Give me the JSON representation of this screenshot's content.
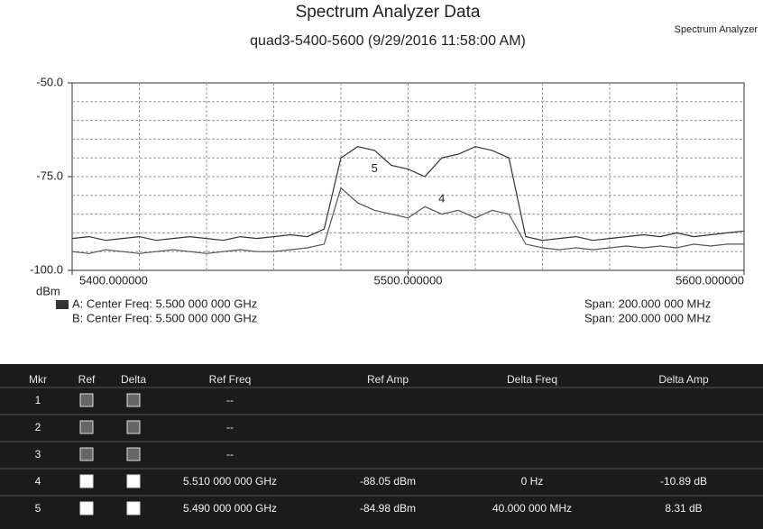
{
  "chart_data": {
    "type": "line",
    "title": "Spectrum Analyzer Data",
    "subtitle": "quad3-5400-5600 (9/29/2016 11:58:00 AM)",
    "badge": "Spectrum Analyzer",
    "y_unit": "dBm",
    "xlim": [
      5400,
      5600
    ],
    "xticks": [
      {
        "value": 5400,
        "label": "5400.000000"
      },
      {
        "value": 5500,
        "label": "5500.000000"
      },
      {
        "value": 5600,
        "label": "5600.000000"
      }
    ],
    "ylim": [
      -100,
      -50
    ],
    "yticks": [
      {
        "value": -50,
        "label": "-50.0"
      },
      {
        "value": -75,
        "label": "-75.0"
      },
      {
        "value": -100,
        "label": "-100.0"
      }
    ],
    "grid": true,
    "grid_divisions": 10,
    "x": [
      5400,
      5405,
      5410,
      5415,
      5420,
      5425,
      5430,
      5435,
      5440,
      5445,
      5450,
      5455,
      5460,
      5465,
      5470,
      5475,
      5480,
      5485,
      5490,
      5495,
      5500,
      5505,
      5510,
      5515,
      5520,
      5525,
      5530,
      5535,
      5540,
      5545,
      5550,
      5555,
      5560,
      5565,
      5570,
      5575,
      5580,
      5585,
      5590,
      5595,
      5600
    ],
    "series": [
      {
        "name": "A: Center Freq: 5.500 000 000 GHz",
        "color": "#333333",
        "values": [
          -91.5,
          -91,
          -92,
          -91.5,
          -91,
          -92,
          -91.5,
          -91,
          -91.5,
          -92,
          -91,
          -91.5,
          -91,
          -90.5,
          -91,
          -89,
          -70,
          -67,
          -68,
          -72,
          -73,
          -75,
          -70,
          -69,
          -67,
          -68,
          -70,
          -91,
          -92,
          -91.5,
          -91,
          -92,
          -91.5,
          -91,
          -90.5,
          -91,
          -90,
          -91,
          -90.5,
          -90,
          -89.5
        ]
      },
      {
        "name": "B: Center Freq: 5.500 000 000 GHz",
        "color": "#555555",
        "values": [
          -95,
          -95.5,
          -94.5,
          -95,
          -95.5,
          -95,
          -94.5,
          -95,
          -95.5,
          -95,
          -94.5,
          -95,
          -95,
          -94.5,
          -94,
          -93,
          -78,
          -82,
          -84,
          -85,
          -86,
          -83,
          -85,
          -84,
          -86,
          -84,
          -85,
          -93,
          -94,
          -94.5,
          -94,
          -94.5,
          -94,
          -93.5,
          -94,
          -93.5,
          -94,
          -93,
          -93.5,
          -93,
          -93
        ]
      }
    ],
    "spans": [
      "Span: 200.000 000 MHz",
      "Span: 200.000 000 MHz"
    ],
    "annotations": [
      {
        "label": "5",
        "x": 5490,
        "y": -73
      },
      {
        "label": "4",
        "x": 5510,
        "y": -81
      }
    ]
  },
  "table": {
    "headers": [
      "Mkr",
      "Ref",
      "Delta",
      "Ref Freq",
      "Ref Amp",
      "Delta Freq",
      "Delta Amp"
    ],
    "rows": [
      {
        "mkr": "1",
        "ref_freq": "--"
      },
      {
        "mkr": "2",
        "ref_freq": "--"
      },
      {
        "mkr": "3",
        "ref_freq": "--"
      },
      {
        "mkr": "4",
        "ref_freq": "5.510 000 000 GHz",
        "ref_amp": "-88.05 dBm",
        "delta_freq": "0 Hz",
        "delta_amp": "-10.89 dB"
      },
      {
        "mkr": "5",
        "ref_freq": "5.490 000 000 GHz",
        "ref_amp": "-84.98 dBm",
        "delta_freq": "40.000 000 MHz",
        "delta_amp": "8.31 dB"
      }
    ]
  }
}
